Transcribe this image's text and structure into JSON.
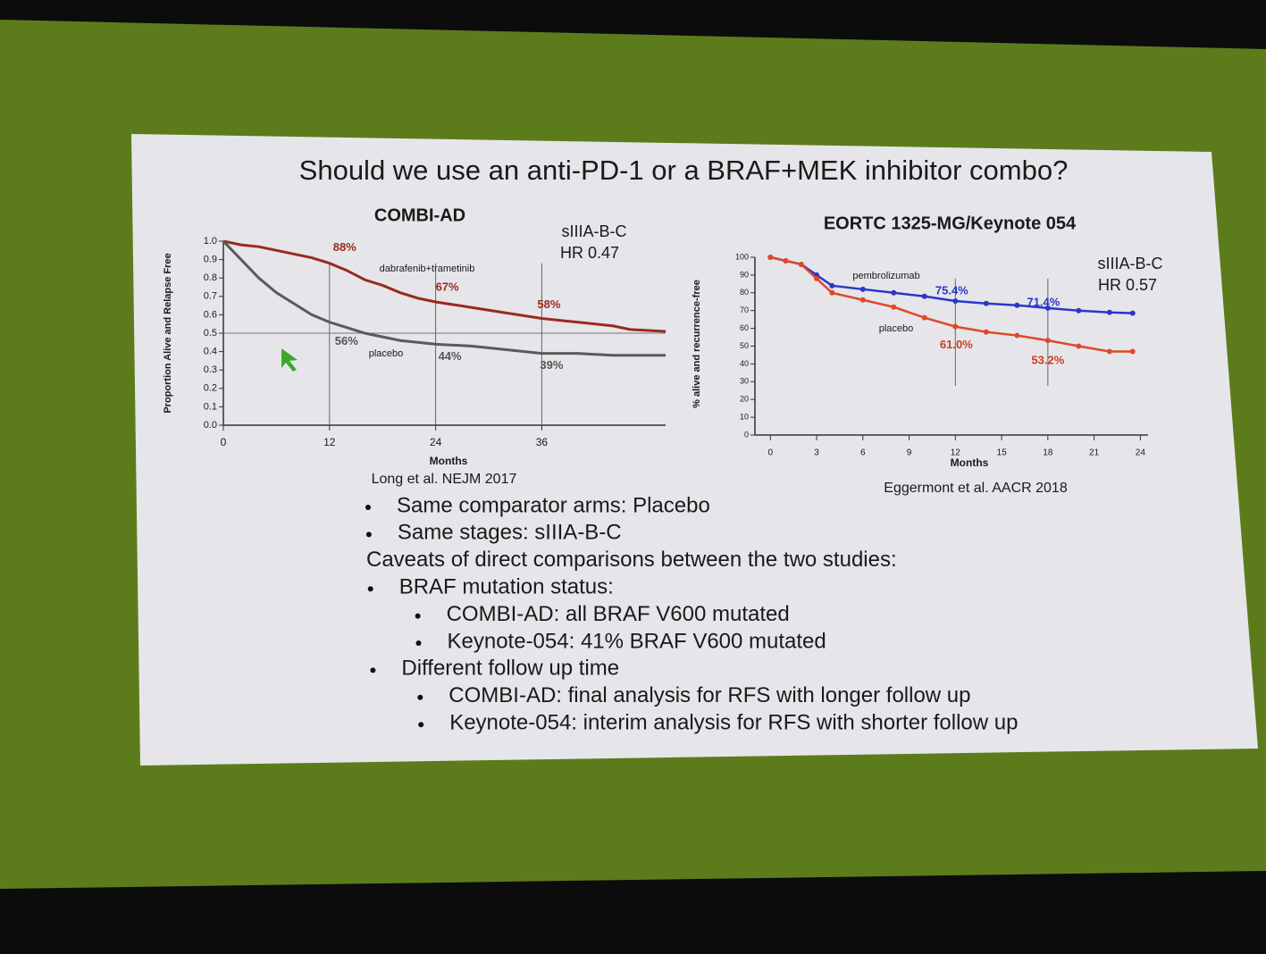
{
  "title": "Should we use an anti-PD-1 or a BRAF+MEK inhibitor combo?",
  "chart_data": [
    {
      "type": "line",
      "title": "COMBI-AD",
      "notes": [
        "sIIIA-B-C",
        "HR 0.47"
      ],
      "source": "Long et al. NEJM 2017",
      "x_label": "Months",
      "y_label": "Proportion Alive and Relapse Free",
      "x": [
        0,
        2,
        4,
        6,
        8,
        10,
        12,
        14,
        16,
        18,
        20,
        22,
        24,
        28,
        32,
        36,
        40,
        44,
        46,
        50
      ],
      "series": [
        {
          "name": "dabrafenib+trametinib",
          "color": "#9a2a1e",
          "values": [
            1,
            0.98,
            0.97,
            0.95,
            0.93,
            0.91,
            0.88,
            0.84,
            0.79,
            0.76,
            0.72,
            0.69,
            0.67,
            0.64,
            0.61,
            0.58,
            0.56,
            0.54,
            0.52,
            0.51
          ]
        },
        {
          "name": "placebo",
          "color": "#5a5a5a",
          "values": [
            1,
            0.9,
            0.8,
            0.72,
            0.66,
            0.6,
            0.56,
            0.53,
            0.5,
            0.48,
            0.46,
            0.45,
            0.44,
            0.43,
            0.41,
            0.39,
            0.39,
            0.38,
            0.38,
            0.38
          ]
        }
      ],
      "annotations": [
        {
          "text": "88%",
          "x": 12,
          "y": 0.88
        },
        {
          "text": "67%",
          "x": 24,
          "y": 0.67
        },
        {
          "text": "58%",
          "x": 36,
          "y": 0.58
        },
        {
          "text": "56%",
          "x": 12,
          "y": 0.56
        },
        {
          "text": "44%",
          "x": 24,
          "y": 0.44
        },
        {
          "text": "39%",
          "x": 36,
          "y": 0.39
        }
      ],
      "hlines": [
        0.5
      ],
      "vlines": [
        12,
        24,
        36
      ],
      "xlim": [
        0,
        50
      ],
      "xticks": [
        0,
        12,
        24,
        36
      ],
      "ylim": [
        0,
        1
      ],
      "yticks": [
        {
          "value": 0,
          "label": "0.0"
        },
        0.1,
        0.2,
        0.3,
        0.4,
        0.5,
        0.6,
        0.7,
        0.8,
        0.9,
        {
          "value": 1,
          "label": "1.0"
        }
      ]
    },
    {
      "type": "line",
      "title": "EORTC 1325-MG/Keynote 054",
      "notes": [
        "sIIIA-B-C",
        "HR 0.57"
      ],
      "source": "Eggermont et al. AACR 2018",
      "x_label": "Months",
      "y_label": "% alive and recurrence-free",
      "x": [
        0,
        1,
        2,
        3,
        4,
        6,
        8,
        10,
        12,
        14,
        16,
        18,
        20,
        22,
        23.5
      ],
      "series": [
        {
          "name": "pembrolizumab",
          "color": "#2a36c8",
          "values": [
            100,
            98,
            96,
            90,
            84,
            82,
            80,
            78,
            75.4,
            74,
            73,
            71.4,
            70,
            69,
            68.5
          ]
        },
        {
          "name": "placebo",
          "color": "#e0482a",
          "values": [
            100,
            98,
            96,
            88,
            80,
            76,
            72,
            66,
            61,
            58,
            56,
            53.2,
            50,
            47,
            47
          ]
        }
      ],
      "annotations": [
        {
          "text": "75.4%",
          "x": 12,
          "y": 75.4
        },
        {
          "text": "71.4%",
          "x": 18,
          "y": 71.4
        },
        {
          "text": "61.0%",
          "x": 12,
          "y": 61.0
        },
        {
          "text": "53.2%",
          "x": 18,
          "y": 53.2
        }
      ],
      "vlines": [
        12,
        18
      ],
      "xlim": [
        -1,
        24.5
      ],
      "xticks": [
        0,
        3,
        6,
        9,
        12,
        15,
        18,
        21,
        24
      ],
      "ylim": [
        0,
        100
      ],
      "yticks": [
        0,
        10,
        20,
        30,
        40,
        50,
        60,
        70,
        80,
        90,
        100
      ]
    }
  ],
  "bullets": [
    "Same comparator arms: Placebo",
    "Same stages: sIIIA-B-C"
  ],
  "caveats_heading": "Caveats of direct comparisons between the two studies:",
  "caveats": [
    {
      "text": "BRAF mutation status:",
      "items": [
        "COMBI-AD: all BRAF V600 mutated",
        "Keynote-054: 41% BRAF V600 mutated"
      ]
    },
    {
      "text": "Different follow up time",
      "items": [
        "COMBI-AD: final analysis for RFS with longer follow up",
        "Keynote-054: interim analysis for RFS with shorter follow up"
      ]
    }
  ]
}
